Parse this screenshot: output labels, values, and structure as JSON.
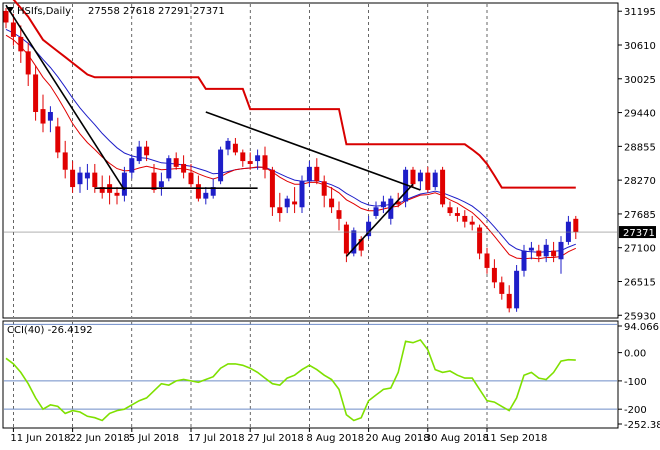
{
  "header": {
    "icon": "triangle-down-icon",
    "symbol": "HSIfs,Daily",
    "ohlc": "27558 27618 27291 27371"
  },
  "indicator": {
    "label": "CCI(40) -26.4192"
  },
  "colors": {
    "bull": "#1e1ec8",
    "bear": "#e00000",
    "ma_fast": "#e00000",
    "ma_slow": "#1e1ec8",
    "stop": "#d80000",
    "cci": "#7fe000",
    "level_line": "#6e8cc8",
    "trendline": "#000000",
    "price_box": "#000000"
  },
  "chart_data": [
    {
      "type": "candlestick",
      "title": "HSIfs,Daily",
      "y_ticks": [
        "31195",
        "30610",
        "30025",
        "29440",
        "28855",
        "28270",
        "27685",
        "27100",
        "26515",
        "25930"
      ],
      "ylim": [
        25900,
        31320
      ],
      "current_price": "27371",
      "x_labels": [
        "11 Jun 2018",
        "22 Jun 2018",
        "5 Jul 2018",
        "17 Jul 2018",
        "27 Jul 2018",
        "8 Aug 2018",
        "20 Aug 2018",
        "30 Aug 2018",
        "11 Sep 2018"
      ],
      "x_label_index": [
        1,
        9,
        17,
        25,
        33,
        41,
        49,
        57,
        65
      ],
      "candles": [
        [
          31200,
          31250,
          30900,
          31000
        ],
        [
          31000,
          31150,
          30600,
          30750
        ],
        [
          30750,
          30950,
          30300,
          30500
        ],
        [
          30500,
          30650,
          29900,
          30100
        ],
        [
          30100,
          30250,
          29300,
          29450
        ],
        [
          29500,
          29750,
          29100,
          29250
        ],
        [
          29300,
          29550,
          29100,
          29450
        ],
        [
          29200,
          29350,
          28650,
          28750
        ],
        [
          28750,
          28950,
          28300,
          28450
        ],
        [
          28450,
          28600,
          28050,
          28150
        ],
        [
          28200,
          28500,
          28050,
          28400
        ],
        [
          28300,
          28550,
          28100,
          28400
        ],
        [
          28400,
          28550,
          28050,
          28150
        ],
        [
          28150,
          28350,
          27950,
          28050
        ],
        [
          28200,
          28350,
          27850,
          28050
        ],
        [
          28050,
          28150,
          27850,
          28000
        ],
        [
          28000,
          28500,
          27900,
          28400
        ],
        [
          28400,
          28700,
          28300,
          28650
        ],
        [
          28600,
          28950,
          28550,
          28850
        ],
        [
          28850,
          28950,
          28600,
          28700
        ],
        [
          28400,
          28550,
          28050,
          28100
        ],
        [
          28150,
          28400,
          28000,
          28250
        ],
        [
          28300,
          28700,
          28250,
          28650
        ],
        [
          28650,
          28750,
          28450,
          28500
        ],
        [
          28550,
          28700,
          28300,
          28400
        ],
        [
          28400,
          28550,
          28150,
          28200
        ],
        [
          28200,
          28350,
          27900,
          27950
        ],
        [
          27950,
          28150,
          27850,
          28050
        ],
        [
          28000,
          28300,
          27950,
          28150
        ],
        [
          28250,
          28850,
          28200,
          28800
        ],
        [
          28800,
          29000,
          28700,
          28950
        ],
        [
          28900,
          29000,
          28700,
          28750
        ],
        [
          28750,
          28800,
          28500,
          28600
        ],
        [
          28600,
          28750,
          28450,
          28550
        ],
        [
          28600,
          28800,
          28450,
          28700
        ],
        [
          28700,
          28850,
          28300,
          28450
        ],
        [
          28450,
          28500,
          27650,
          27800
        ],
        [
          27800,
          28050,
          27550,
          27700
        ],
        [
          27800,
          28000,
          27700,
          27950
        ],
        [
          27900,
          28150,
          27700,
          27850
        ],
        [
          27800,
          28350,
          27700,
          28250
        ],
        [
          28250,
          28600,
          28150,
          28500
        ],
        [
          28500,
          28650,
          28200,
          28250
        ],
        [
          28250,
          28350,
          27800,
          28000
        ],
        [
          27950,
          28150,
          27700,
          27800
        ],
        [
          27750,
          27900,
          27400,
          27600
        ],
        [
          27500,
          27550,
          26850,
          27000
        ],
        [
          27000,
          27450,
          26950,
          27400
        ],
        [
          27250,
          27300,
          26950,
          27050
        ],
        [
          27300,
          27650,
          27250,
          27550
        ],
        [
          27650,
          27900,
          27600,
          27800
        ],
        [
          27800,
          28000,
          27700,
          27900
        ],
        [
          27600,
          28000,
          27500,
          27950
        ],
        [
          27900,
          28050,
          27800,
          27850
        ],
        [
          27900,
          28500,
          27800,
          28450
        ],
        [
          28450,
          28500,
          28150,
          28200
        ],
        [
          28250,
          28450,
          28100,
          28400
        ],
        [
          28400,
          28500,
          28050,
          28100
        ],
        [
          28150,
          28450,
          28100,
          28400
        ],
        [
          28450,
          28500,
          27800,
          27850
        ],
        [
          27800,
          27900,
          27650,
          27700
        ],
        [
          27700,
          27800,
          27550,
          27650
        ],
        [
          27650,
          27750,
          27450,
          27550
        ],
        [
          27550,
          27650,
          27400,
          27500
        ],
        [
          27450,
          27500,
          26900,
          27000
        ],
        [
          27000,
          27100,
          26650,
          26750
        ],
        [
          26750,
          26900,
          26400,
          26500
        ],
        [
          26500,
          26600,
          26200,
          26300
        ],
        [
          26300,
          26450,
          25980,
          26050
        ],
        [
          26050,
          26800,
          25990,
          26700
        ],
        [
          26700,
          27150,
          26600,
          27050
        ],
        [
          27050,
          27200,
          26900,
          27100
        ],
        [
          27050,
          27150,
          26850,
          26950
        ],
        [
          26950,
          27250,
          26850,
          27150
        ],
        [
          27050,
          27200,
          26850,
          26950
        ],
        [
          26900,
          27300,
          26650,
          27200
        ],
        [
          27200,
          27650,
          27150,
          27550
        ],
        [
          27600,
          27650,
          27250,
          27370
        ]
      ],
      "ma_fast": [
        30780,
        30700,
        30580,
        30440,
        30250,
        30050,
        29900,
        29700,
        29480,
        29250,
        29070,
        28920,
        28800,
        28670,
        28560,
        28470,
        28430,
        28440,
        28480,
        28510,
        28480,
        28450,
        28460,
        28470,
        28470,
        28440,
        28380,
        28330,
        28290,
        28330,
        28400,
        28450,
        28470,
        28480,
        28500,
        28490,
        28410,
        28320,
        28250,
        28200,
        28200,
        28230,
        28230,
        28190,
        28130,
        28050,
        27930,
        27860,
        27780,
        27740,
        27740,
        27770,
        27800,
        27820,
        27910,
        27960,
        28010,
        28020,
        28050,
        28000,
        27930,
        27870,
        27790,
        27710,
        27590,
        27450,
        27300,
        27140,
        26980,
        26920,
        26910,
        26920,
        26910,
        26930,
        26930,
        26950,
        27030,
        27090
      ],
      "ma_slow": [
        30880,
        30820,
        30740,
        30640,
        30510,
        30360,
        30220,
        30060,
        29880,
        29690,
        29520,
        29370,
        29230,
        29080,
        28950,
        28830,
        28740,
        28690,
        28660,
        28650,
        28610,
        28570,
        28560,
        28550,
        28530,
        28510,
        28470,
        28430,
        28380,
        28390,
        28420,
        28450,
        28470,
        28480,
        28490,
        28490,
        28440,
        28380,
        28320,
        28270,
        28250,
        28260,
        28260,
        28230,
        28190,
        28130,
        28040,
        27970,
        27890,
        27840,
        27820,
        27830,
        27850,
        27860,
        27930,
        27980,
        28030,
        28050,
        28080,
        28050,
        28000,
        27950,
        27890,
        27820,
        27720,
        27600,
        27460,
        27310,
        27160,
        27080,
        27040,
        27030,
        27020,
        27030,
        27040,
        27050,
        27110,
        27160
      ],
      "stop_line": [
        31500,
        31400,
        31250,
        31100,
        30900,
        30700,
        30600,
        30500,
        30400,
        30300,
        30200,
        30100,
        30050,
        30050,
        30050,
        30050,
        30050,
        30050,
        30050,
        30050,
        30050,
        30050,
        30050,
        30050,
        30050,
        30050,
        30050,
        29850,
        29850,
        29850,
        29850,
        29850,
        29850,
        29500,
        29500,
        29500,
        29500,
        29500,
        29500,
        29500,
        29500,
        29500,
        29500,
        29500,
        29500,
        29500,
        28890,
        28890,
        28890,
        28890,
        28890,
        28890,
        28890,
        28890,
        28890,
        28890,
        28890,
        28890,
        28890,
        28890,
        28890,
        28890,
        28890,
        28800,
        28700,
        28550,
        28350,
        28140,
        28140,
        28140,
        28140,
        28140,
        28140,
        28140,
        28140,
        28140,
        28140,
        28140
      ],
      "trendlines": [
        {
          "from": [
            0,
            31300
          ],
          "to": [
            16,
            28100
          ]
        },
        {
          "from": [
            27,
            29450
          ],
          "to": [
            56,
            28100
          ]
        },
        {
          "from": [
            12,
            28130
          ],
          "to": [
            34,
            28130
          ]
        },
        {
          "from": [
            46,
            26950
          ],
          "to": [
            55,
            28200
          ]
        }
      ]
    },
    {
      "type": "line",
      "title": "CCI(40) -26.4192",
      "y_ticks": [
        "94.0661",
        "0.00",
        "-100",
        "-200",
        "-252.381"
      ],
      "levels": [
        100,
        -100,
        -200
      ],
      "ylim": [
        -252.381,
        94.0661
      ],
      "values": [
        -20,
        -40,
        -70,
        -110,
        -160,
        -200,
        -185,
        -190,
        -215,
        -205,
        -210,
        -225,
        -230,
        -240,
        -215,
        -205,
        -200,
        -185,
        -170,
        -160,
        -135,
        -110,
        -115,
        -100,
        -95,
        -100,
        -105,
        -95,
        -85,
        -55,
        -40,
        -40,
        -45,
        -55,
        -70,
        -90,
        -110,
        -115,
        -90,
        -80,
        -60,
        -45,
        -60,
        -80,
        -95,
        -130,
        -220,
        -240,
        -230,
        -170,
        -150,
        -130,
        -125,
        -70,
        40,
        35,
        45,
        10,
        -60,
        -70,
        -65,
        -80,
        -90,
        -90,
        -130,
        -170,
        -175,
        -190,
        -205,
        -160,
        -80,
        -70,
        -90,
        -95,
        -70,
        -30,
        -25,
        -26.4
      ]
    }
  ]
}
